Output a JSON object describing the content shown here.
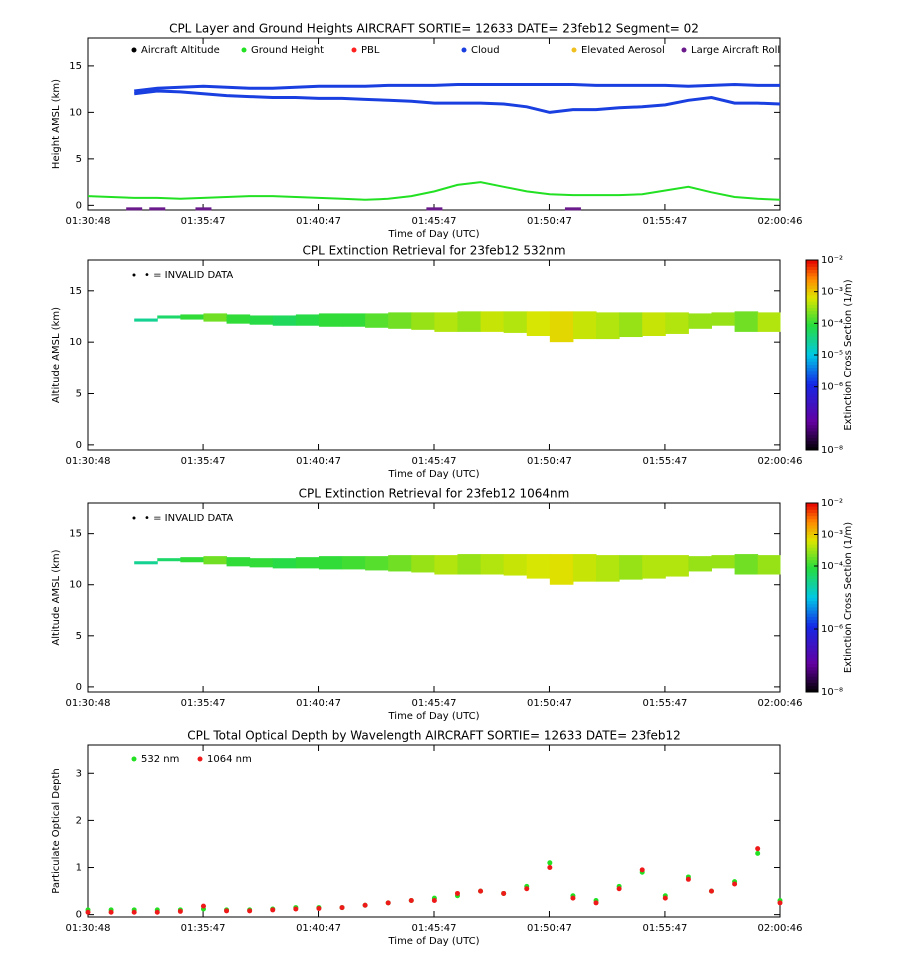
{
  "chart_data": [
    {
      "type": "layers",
      "title": "CPL Layer and Ground Heights AIRCRAFT SORTIE= 12633 DATE= 23feb12 Segment= 02",
      "xlabel": "Time of Day (UTC)",
      "ylabel": "Height AMSL (km)",
      "x": [
        "01:30:48",
        "01:31:48",
        "01:32:48",
        "01:33:48",
        "01:34:48",
        "01:35:48",
        "01:36:48",
        "01:37:48",
        "01:38:48",
        "01:39:48",
        "01:40:48",
        "01:41:48",
        "01:42:48",
        "01:43:48",
        "01:44:48",
        "01:45:48",
        "01:46:48",
        "01:47:48",
        "01:48:48",
        "01:49:48",
        "01:50:48",
        "01:51:48",
        "01:52:48",
        "01:53:48",
        "01:54:48",
        "01:55:48",
        "01:56:48",
        "01:57:48",
        "01:58:48",
        "01:59:48",
        "02:00:46"
      ],
      "xlim": [
        "01:30:48",
        "02:00:46"
      ],
      "xticks": [
        "01:30:48",
        "01:35:47",
        "01:40:47",
        "01:45:47",
        "01:50:47",
        "01:55:47",
        "02:00:46"
      ],
      "ylim": [
        -0.5,
        18
      ],
      "yticks": [
        0,
        5,
        10,
        15
      ],
      "series": [
        {
          "name": "Aircraft Altitude",
          "color": "#000000",
          "values": [
            null,
            null,
            null,
            null,
            null,
            null,
            null,
            null,
            null,
            null,
            null,
            null,
            null,
            null,
            null,
            null,
            null,
            null,
            null,
            null,
            null,
            null,
            null,
            null,
            null,
            null,
            null,
            null,
            null,
            null,
            null
          ]
        },
        {
          "name": "Ground Height",
          "color": "#22e022",
          "values": [
            1.0,
            0.9,
            0.8,
            0.8,
            0.7,
            0.8,
            0.9,
            1.0,
            1.0,
            0.9,
            0.8,
            0.7,
            0.6,
            0.7,
            1.0,
            1.5,
            2.2,
            2.5,
            2.0,
            1.5,
            1.2,
            1.1,
            1.1,
            1.1,
            1.2,
            1.6,
            2.0,
            1.4,
            0.9,
            0.7,
            0.6
          ]
        },
        {
          "name": "PBL",
          "color": "#ff2020",
          "values": [
            null,
            null,
            null,
            null,
            null,
            null,
            null,
            null,
            null,
            null,
            null,
            null,
            null,
            null,
            null,
            null,
            null,
            null,
            null,
            null,
            null,
            null,
            null,
            null,
            null,
            null,
            null,
            null,
            null,
            null,
            null
          ]
        },
        {
          "name": "Cloud",
          "color": "#1a3fe0",
          "values": [
            null,
            null,
            12.3,
            12.6,
            12.7,
            12.8,
            12.7,
            12.6,
            12.6,
            12.7,
            12.8,
            12.8,
            12.8,
            12.9,
            12.9,
            12.9,
            13.0,
            13.0,
            13.0,
            13.0,
            13.0,
            13.0,
            12.9,
            12.9,
            12.9,
            12.9,
            12.8,
            12.9,
            13.0,
            12.9,
            12.9
          ],
          "base": [
            null,
            null,
            12.0,
            12.3,
            12.2,
            12.0,
            11.8,
            11.7,
            11.6,
            11.6,
            11.5,
            11.5,
            11.4,
            11.3,
            11.2,
            11.0,
            11.0,
            11.0,
            10.9,
            10.6,
            10.0,
            10.3,
            10.3,
            10.5,
            10.6,
            10.8,
            11.3,
            11.6,
            11.0,
            11.0,
            10.9
          ]
        },
        {
          "name": "Elevated Aerosol",
          "color": "#f0c020",
          "values": [
            null,
            null,
            null,
            null,
            null,
            null,
            null,
            null,
            null,
            null,
            null,
            null,
            null,
            null,
            null,
            null,
            null,
            null,
            null,
            null,
            null,
            null,
            null,
            null,
            null,
            null,
            null,
            null,
            null,
            null,
            null
          ]
        },
        {
          "name": "Large Aircraft Roll",
          "color": "#6a1a8a",
          "values": [
            null,
            null,
            0,
            0,
            null,
            0,
            null,
            null,
            null,
            null,
            null,
            null,
            null,
            null,
            null,
            0,
            null,
            null,
            null,
            null,
            null,
            0,
            null,
            null,
            null,
            null,
            null,
            null,
            null,
            null,
            null
          ]
        }
      ]
    },
    {
      "type": "curtain",
      "title": "CPL Extinction Retrieval for 23feb12      532nm",
      "annotation": "• = INVALID DATA",
      "xlabel": "Time of Day (UTC)",
      "ylabel": "Altitude AMSL (km)",
      "colorbar_label": "Extinction Cross Section (1/m)",
      "x": [
        "01:30:48",
        "01:31:48",
        "01:32:48",
        "01:33:48",
        "01:34:48",
        "01:35:48",
        "01:36:48",
        "01:37:48",
        "01:38:48",
        "01:39:48",
        "01:40:48",
        "01:41:48",
        "01:42:48",
        "01:43:48",
        "01:44:48",
        "01:45:48",
        "01:46:48",
        "01:47:48",
        "01:48:48",
        "01:49:48",
        "01:50:48",
        "01:51:48",
        "01:52:48",
        "01:53:48",
        "01:54:48",
        "01:55:48",
        "01:56:48",
        "01:57:48",
        "01:58:48",
        "01:59:48",
        "02:00:46"
      ],
      "xlim": [
        "01:30:48",
        "02:00:46"
      ],
      "xticks": [
        "01:30:48",
        "01:35:47",
        "01:40:47",
        "01:45:47",
        "01:50:47",
        "01:55:47",
        "02:00:46"
      ],
      "ylim": [
        -0.5,
        18
      ],
      "yticks": [
        0,
        5,
        10,
        15
      ],
      "top": [
        null,
        null,
        12.3,
        12.6,
        12.7,
        12.8,
        12.7,
        12.6,
        12.6,
        12.7,
        12.8,
        12.8,
        12.8,
        12.9,
        12.9,
        12.9,
        13.0,
        13.0,
        13.0,
        13.0,
        13.0,
        13.0,
        12.9,
        12.9,
        12.9,
        12.9,
        12.8,
        12.9,
        13.0,
        12.9,
        12.9
      ],
      "base": [
        null,
        null,
        12.0,
        12.3,
        12.2,
        12.0,
        11.8,
        11.7,
        11.6,
        11.6,
        11.5,
        11.5,
        11.4,
        11.3,
        11.2,
        11.0,
        11.0,
        11.0,
        10.9,
        10.6,
        10.0,
        10.3,
        10.3,
        10.5,
        10.6,
        10.8,
        11.3,
        11.6,
        11.0,
        11.0,
        10.9
      ],
      "extinction": [
        null,
        null,
        3e-05,
        5e-05,
        0.0001,
        0.0002,
        0.0001,
        8e-05,
        6e-05,
        8e-05,
        0.0001,
        0.0001,
        0.00015,
        0.0002,
        0.0003,
        0.0004,
        0.0003,
        0.0005,
        0.0004,
        0.0006,
        0.0008,
        0.0005,
        0.0004,
        0.0003,
        0.0005,
        0.0004,
        0.0003,
        0.0003,
        0.0002,
        0.0004,
        0.0002
      ],
      "clim": [
        1e-08,
        0.01
      ],
      "log_color": true,
      "cticks": [
        {
          "value": 1e-08,
          "label": "10⁻⁸"
        },
        {
          "value": 1e-06,
          "label": "10⁻⁶"
        },
        {
          "value": 1e-05,
          "label": "10⁻⁵"
        },
        {
          "value": 0.0001,
          "label": "10⁻⁴"
        },
        {
          "value": 0.001,
          "label": "10⁻³"
        },
        {
          "value": 0.01,
          "label": "10⁻²"
        }
      ]
    },
    {
      "type": "curtain",
      "title": "CPL Extinction Retrieval for 23feb12     1064nm",
      "annotation": "• = INVALID DATA",
      "xlabel": "Time of Day (UTC)",
      "ylabel": "Altitude AMSL (km)",
      "colorbar_label": "Extinction Cross Section (1/m)",
      "x": [
        "01:30:48",
        "01:31:48",
        "01:32:48",
        "01:33:48",
        "01:34:48",
        "01:35:48",
        "01:36:48",
        "01:37:48",
        "01:38:48",
        "01:39:48",
        "01:40:48",
        "01:41:48",
        "01:42:48",
        "01:43:48",
        "01:44:48",
        "01:45:48",
        "01:46:48",
        "01:47:48",
        "01:48:48",
        "01:49:48",
        "01:50:48",
        "01:51:48",
        "01:52:48",
        "01:53:48",
        "01:54:48",
        "01:55:48",
        "01:56:48",
        "01:57:48",
        "01:58:48",
        "01:59:48",
        "02:00:46"
      ],
      "xlim": [
        "01:30:48",
        "02:00:46"
      ],
      "xticks": [
        "01:30:48",
        "01:35:47",
        "01:40:47",
        "01:45:47",
        "01:50:47",
        "01:55:47",
        "02:00:46"
      ],
      "ylim": [
        -0.5,
        18
      ],
      "yticks": [
        0,
        5,
        10,
        15
      ],
      "top": [
        null,
        null,
        12.3,
        12.6,
        12.7,
        12.8,
        12.7,
        12.6,
        12.6,
        12.7,
        12.8,
        12.8,
        12.8,
        12.9,
        12.9,
        12.9,
        13.0,
        13.0,
        13.0,
        13.0,
        13.0,
        13.0,
        12.9,
        12.9,
        12.9,
        12.9,
        12.8,
        12.9,
        13.0,
        12.9,
        12.9
      ],
      "base": [
        null,
        null,
        12.0,
        12.3,
        12.2,
        12.0,
        11.8,
        11.7,
        11.6,
        11.6,
        11.5,
        11.5,
        11.4,
        11.3,
        11.2,
        11.0,
        11.0,
        11.0,
        10.9,
        10.6,
        10.0,
        10.3,
        10.3,
        10.5,
        10.6,
        10.8,
        11.3,
        11.6,
        11.0,
        11.0,
        10.9
      ],
      "extinction": [
        null,
        null,
        3e-05,
        5e-05,
        0.0001,
        0.0002,
        0.0001,
        0.0001,
        8e-05,
        0.0001,
        0.0001,
        0.00012,
        0.00015,
        0.0002,
        0.0003,
        0.0004,
        0.0003,
        0.0004,
        0.0005,
        0.0006,
        0.0007,
        0.0005,
        0.0004,
        0.0003,
        0.0004,
        0.0004,
        0.0003,
        0.0003,
        0.0002,
        0.0003,
        0.0002
      ],
      "clim": [
        1e-08,
        0.01
      ],
      "log_color": true,
      "cticks": [
        {
          "value": 1e-08,
          "label": "10⁻⁸"
        },
        {
          "value": 1e-06,
          "label": "10⁻⁶"
        },
        {
          "value": 0.0001,
          "label": "10⁻⁴"
        },
        {
          "value": 0.001,
          "label": "10⁻³"
        },
        {
          "value": 0.01,
          "label": "10⁻²"
        }
      ]
    },
    {
      "type": "scatter",
      "title": "CPL Total Optical Depth by Wavelength AIRCRAFT SORTIE= 12633 DATE= 23feb12",
      "xlabel": "Time of Day (UTC)",
      "ylabel": "Particulate Optical Depth",
      "x": [
        "01:30:48",
        "01:31:48",
        "01:32:48",
        "01:33:48",
        "01:34:48",
        "01:35:48",
        "01:36:48",
        "01:37:48",
        "01:38:48",
        "01:39:48",
        "01:40:48",
        "01:41:48",
        "01:42:48",
        "01:43:48",
        "01:44:48",
        "01:45:48",
        "01:46:48",
        "01:47:48",
        "01:48:48",
        "01:49:48",
        "01:50:48",
        "01:51:48",
        "01:52:48",
        "01:53:48",
        "01:54:48",
        "01:55:48",
        "01:56:48",
        "01:57:48",
        "01:58:48",
        "01:59:48",
        "02:00:46"
      ],
      "xlim": [
        "01:30:48",
        "02:00:46"
      ],
      "xticks": [
        "01:30:48",
        "01:35:47",
        "01:40:47",
        "01:45:47",
        "01:50:47",
        "01:55:47",
        "02:00:46"
      ],
      "ylim": [
        -0.05,
        3.6
      ],
      "yticks": [
        0,
        1,
        2,
        3
      ],
      "series": [
        {
          "name": "532 nm",
          "color": "#22e022",
          "values": [
            0.1,
            0.1,
            0.1,
            0.1,
            0.1,
            0.12,
            0.1,
            0.1,
            0.12,
            0.15,
            0.15,
            0.15,
            0.2,
            0.25,
            0.3,
            0.35,
            0.4,
            0.5,
            0.45,
            0.6,
            1.1,
            0.4,
            0.3,
            0.6,
            0.9,
            0.4,
            0.8,
            0.5,
            0.7,
            1.3,
            0.3
          ]
        },
        {
          "name": "1064 nm",
          "color": "#ee1a1a",
          "values": [
            0.05,
            0.05,
            0.05,
            0.05,
            0.07,
            0.18,
            0.08,
            0.08,
            0.1,
            0.12,
            0.13,
            0.15,
            0.2,
            0.25,
            0.3,
            0.3,
            0.45,
            0.5,
            0.45,
            0.55,
            1.0,
            0.35,
            0.25,
            0.55,
            0.95,
            0.35,
            0.75,
            0.5,
            0.65,
            1.4,
            0.25
          ]
        }
      ]
    }
  ]
}
